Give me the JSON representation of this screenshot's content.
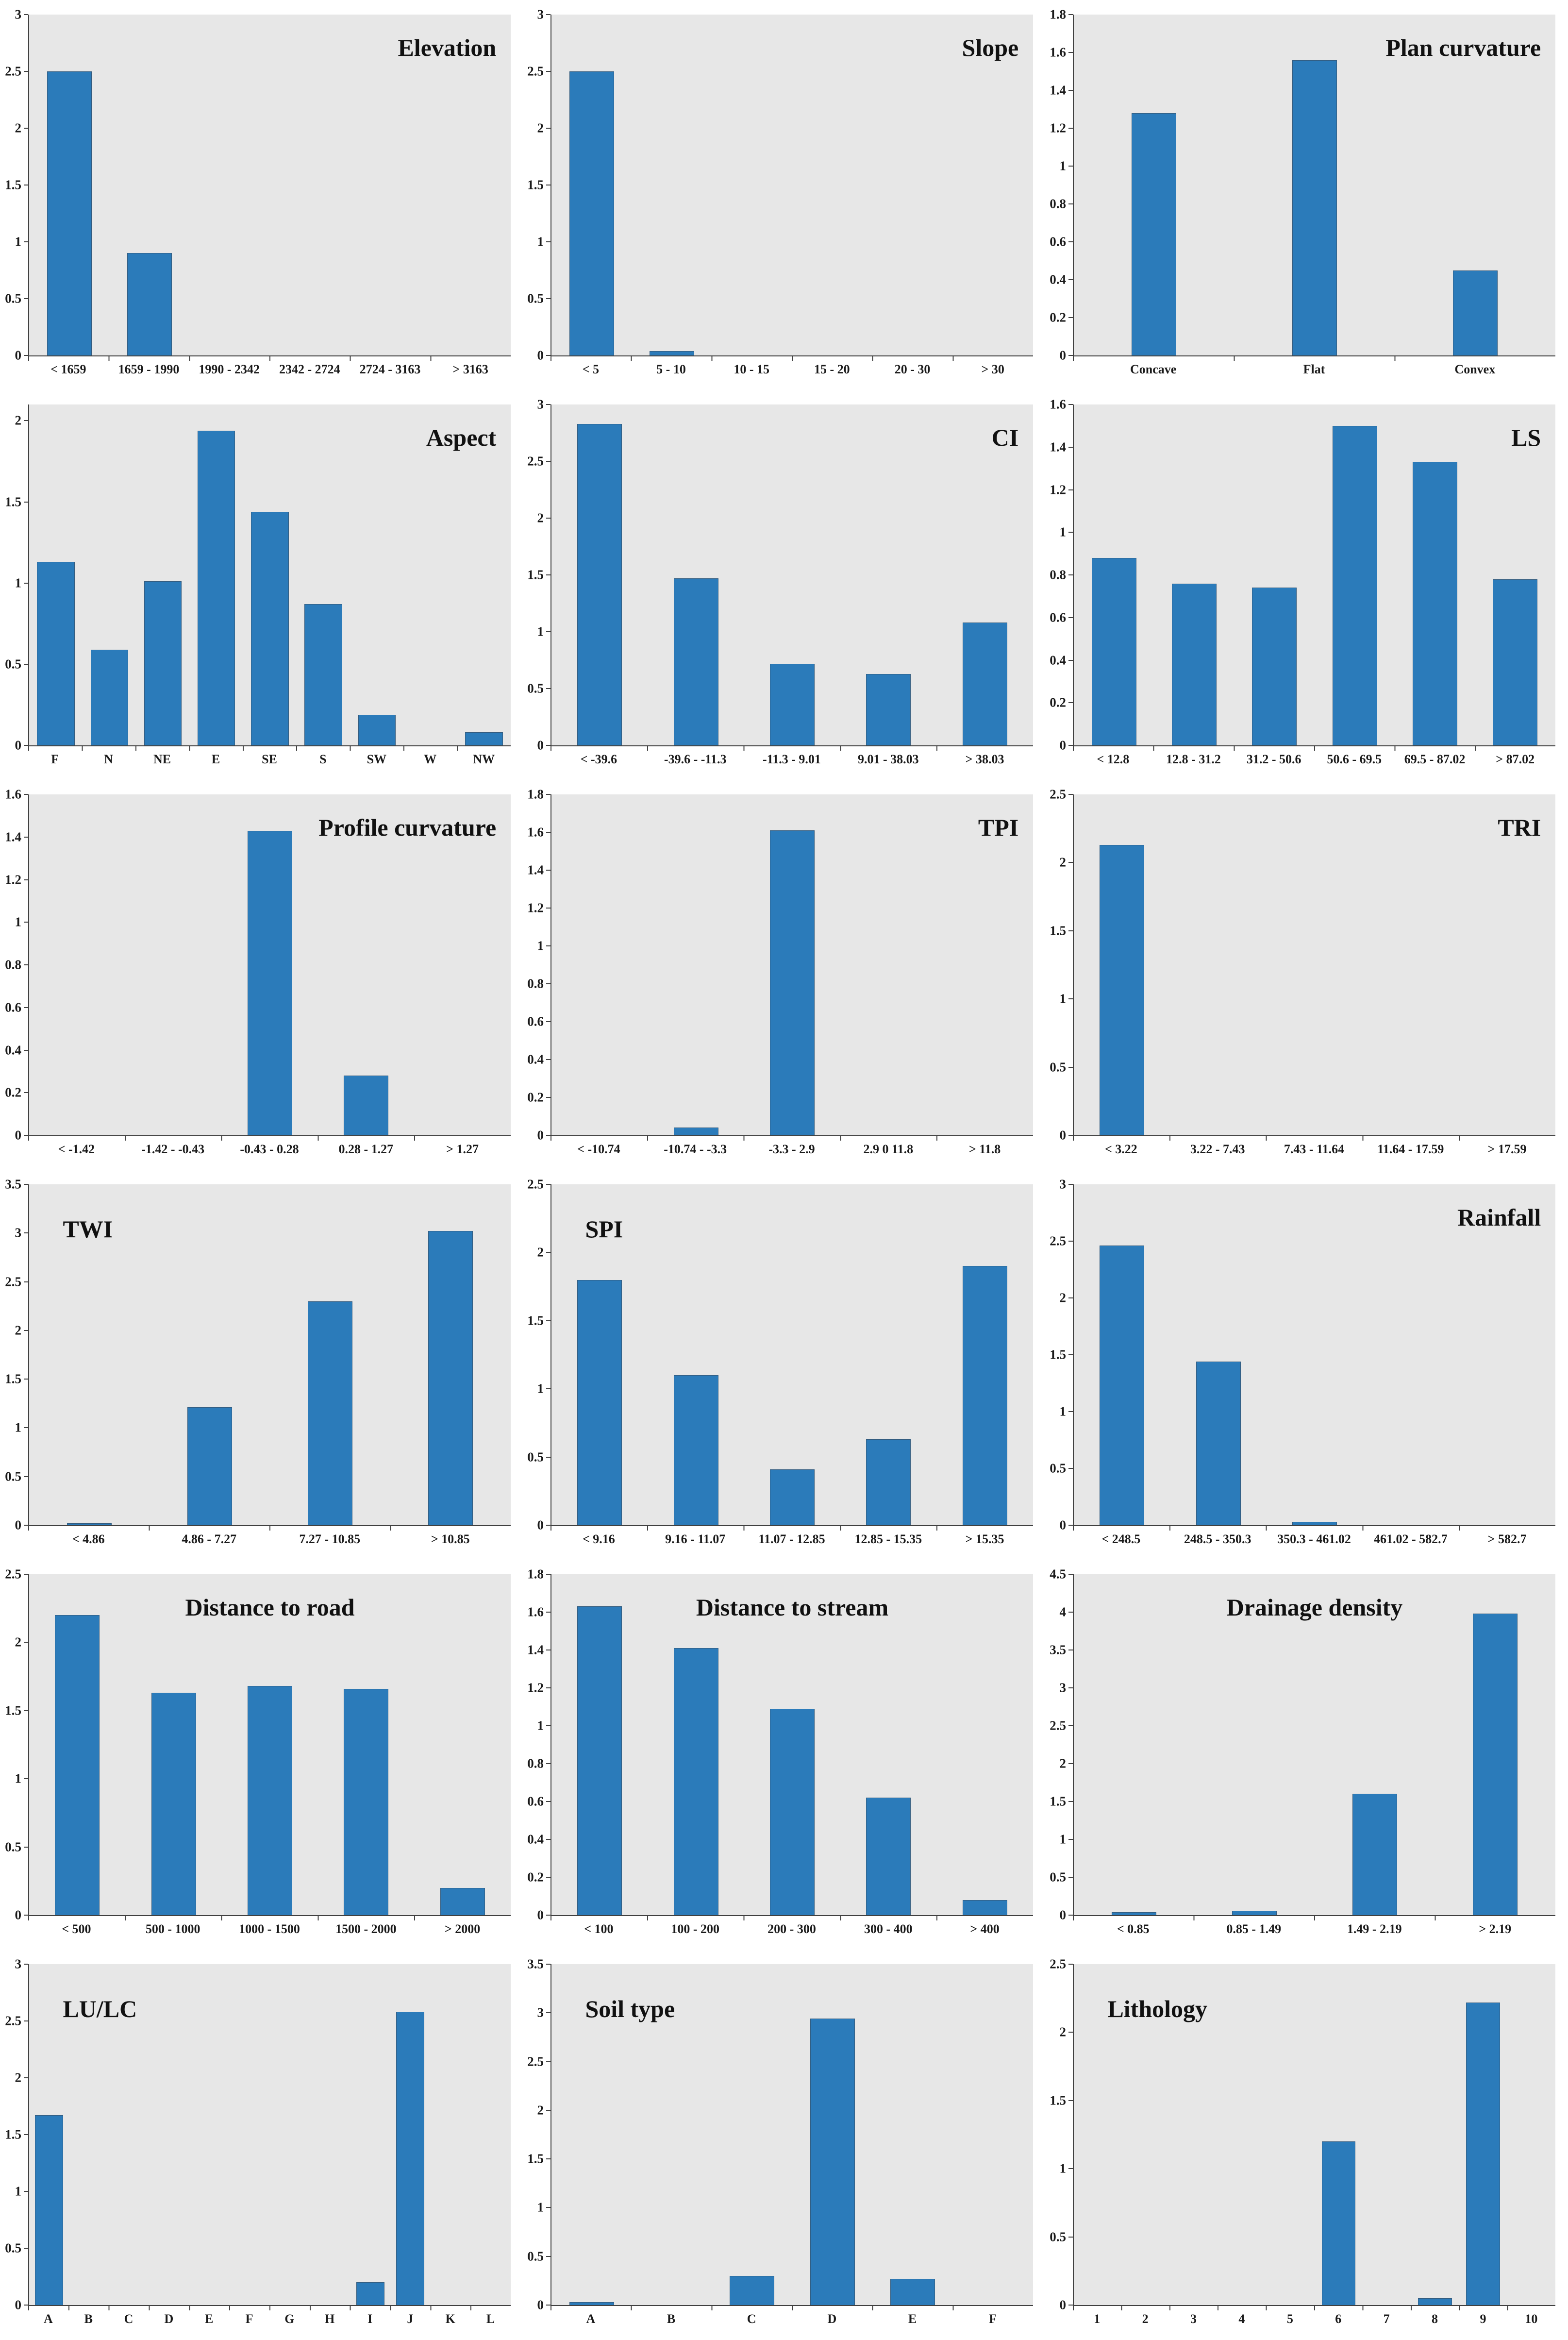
{
  "page": {
    "background": "#ffffff",
    "layout": "6x3 grid of bar charts (landslide conditioning factor frequency-ratio histograms)"
  },
  "colors": {
    "bar": "#2b7bba",
    "plot_background": "#e7e7e7",
    "axis": "#404040",
    "text": "#111111",
    "page_background": "#ffffff"
  },
  "chart_data": [
    {
      "id": "elevation",
      "type": "bar",
      "title": "Elevation",
      "title_pos": "right",
      "categories": [
        "< 1659",
        "1659 - 1990",
        "1990 - 2342",
        "2342 - 2724",
        "2724 - 3163",
        "> 3163"
      ],
      "values": [
        2.5,
        0.9,
        0,
        0,
        0,
        0
      ],
      "ylim": [
        0,
        3
      ],
      "ytick_values": [
        0,
        0.5,
        1,
        1.5,
        2,
        2.5,
        3
      ],
      "yticks": [
        "0",
        "0.5",
        "1",
        "1.5",
        "2",
        "2.5",
        "3"
      ],
      "xlabel": "",
      "ylabel": "",
      "grid": false,
      "legend": "none"
    },
    {
      "id": "slope",
      "type": "bar",
      "title": "Slope",
      "title_pos": "right",
      "categories": [
        "< 5",
        "5 - 10",
        "10 - 15",
        "15 - 20",
        "20 - 30",
        "> 30"
      ],
      "values": [
        2.5,
        0.04,
        0,
        0,
        0,
        0
      ],
      "ylim": [
        0,
        3
      ],
      "ytick_values": [
        0,
        0.5,
        1,
        1.5,
        2,
        2.5,
        3
      ],
      "yticks": [
        "0",
        "0.5",
        "1",
        "1.5",
        "2",
        "2.5",
        "3"
      ],
      "xlabel": "",
      "ylabel": "",
      "grid": false,
      "legend": "none"
    },
    {
      "id": "plan-curvature",
      "type": "bar",
      "title": "Plan curvature",
      "title_pos": "right",
      "categories": [
        "Concave",
        "Flat",
        "Convex"
      ],
      "values": [
        1.28,
        1.56,
        0.45
      ],
      "ylim": [
        0,
        1.8
      ],
      "ytick_values": [
        0,
        0.2,
        0.4,
        0.6,
        0.8,
        1,
        1.2,
        1.4,
        1.6,
        1.8
      ],
      "yticks": [
        "0",
        "0.2",
        "0.4",
        "0.6",
        "0.8",
        "1",
        "1.2",
        "1.4",
        "1.6",
        "1.8"
      ],
      "xlabel": "",
      "ylabel": "",
      "grid": false,
      "legend": "none"
    },
    {
      "id": "aspect",
      "type": "bar",
      "title": "Aspect",
      "title_pos": "right",
      "categories": [
        "F",
        "N",
        "NE",
        "E",
        "SE",
        "S",
        "SW",
        "W",
        "NW"
      ],
      "values": [
        1.13,
        0.59,
        1.01,
        1.94,
        1.44,
        0.87,
        0.19,
        0,
        0.08
      ],
      "ylim": [
        0,
        2.1
      ],
      "ytick_values": [
        0,
        0.5,
        1,
        1.5,
        2
      ],
      "yticks": [
        "0",
        "0.5",
        "1",
        "1.5",
        "2"
      ],
      "xlabel": "",
      "ylabel": "",
      "grid": false,
      "legend": "none"
    },
    {
      "id": "ci",
      "type": "bar",
      "title": "CI",
      "title_pos": "right",
      "categories": [
        "< -39.6",
        "-39.6 - -11.3",
        "-11.3 - 9.01",
        "9.01 - 38.03",
        "> 38.03"
      ],
      "values": [
        2.83,
        1.47,
        0.72,
        0.63,
        1.08
      ],
      "ylim": [
        0,
        3
      ],
      "ytick_values": [
        0,
        0.5,
        1,
        1.5,
        2,
        2.5,
        3
      ],
      "yticks": [
        "0",
        "0.5",
        "1",
        "1.5",
        "2",
        "2.5",
        "3"
      ],
      "xlabel": "",
      "ylabel": "",
      "grid": false,
      "legend": "none"
    },
    {
      "id": "ls",
      "type": "bar",
      "title": "LS",
      "title_pos": "right",
      "categories": [
        "< 12.8",
        "12.8 - 31.2",
        "31.2 - 50.6",
        "50.6 - 69.5",
        "69.5 - 87.02",
        "> 87.02"
      ],
      "values": [
        0.88,
        0.76,
        0.74,
        1.5,
        1.33,
        0.78
      ],
      "ylim": [
        0,
        1.6
      ],
      "ytick_values": [
        0,
        0.2,
        0.4,
        0.6,
        0.8,
        1,
        1.2,
        1.4,
        1.6
      ],
      "yticks": [
        "0",
        "0.2",
        "0.4",
        "0.6",
        "0.8",
        "1",
        "1.2",
        "1.4",
        "1.6"
      ],
      "xlabel": "",
      "ylabel": "",
      "grid": false,
      "legend": "none"
    },
    {
      "id": "profile-curvature",
      "type": "bar",
      "title": "Profile curvature",
      "title_pos": "right",
      "categories": [
        "< -1.42",
        "-1.42 - -0.43",
        "-0.43 - 0.28",
        "0.28 - 1.27",
        "> 1.27"
      ],
      "values": [
        0,
        0,
        1.43,
        0.28,
        0
      ],
      "ylim": [
        0,
        1.6
      ],
      "ytick_values": [
        0,
        0.2,
        0.4,
        0.6,
        0.8,
        1,
        1.2,
        1.4,
        1.6
      ],
      "yticks": [
        "0",
        "0.2",
        "0.4",
        "0.6",
        "0.8",
        "1",
        "1.2",
        "1.4",
        "1.6"
      ],
      "xlabel": "",
      "ylabel": "",
      "grid": false,
      "legend": "none"
    },
    {
      "id": "tpi",
      "type": "bar",
      "title": "TPI",
      "title_pos": "right",
      "categories": [
        "< -10.74",
        "-10.74 - -3.3",
        "-3.3 - 2.9",
        "2.9 0 11.8",
        "> 11.8"
      ],
      "values": [
        0,
        0.04,
        1.61,
        0,
        0
      ],
      "ylim": [
        0,
        1.8
      ],
      "ytick_values": [
        0,
        0.2,
        0.4,
        0.6,
        0.8,
        1,
        1.2,
        1.4,
        1.6,
        1.8
      ],
      "yticks": [
        "0",
        "0.2",
        "0.4",
        "0.6",
        "0.8",
        "1",
        "1.2",
        "1.4",
        "1.6",
        "1.8"
      ],
      "xlabel": "",
      "ylabel": "",
      "grid": false,
      "legend": "none"
    },
    {
      "id": "tri",
      "type": "bar",
      "title": "TRI",
      "title_pos": "right",
      "categories": [
        "< 3.22",
        "3.22 - 7.43",
        "7.43 - 11.64",
        "11.64 - 17.59",
        "> 17.59"
      ],
      "values": [
        2.13,
        0,
        0,
        0,
        0
      ],
      "ylim": [
        0,
        2.5
      ],
      "ytick_values": [
        0,
        0.5,
        1,
        1.5,
        2,
        2.5
      ],
      "yticks": [
        "0",
        "0.5",
        "1",
        "1.5",
        "2",
        "2.5"
      ],
      "xlabel": "",
      "ylabel": "",
      "grid": false,
      "legend": "none"
    },
    {
      "id": "twi",
      "type": "bar",
      "title": "TWI",
      "title_pos": "left",
      "categories": [
        "< 4.86",
        "4.86 - 7.27",
        "7.27 - 10.85",
        "> 10.85"
      ],
      "values": [
        0.02,
        1.21,
        2.3,
        3.02
      ],
      "ylim": [
        0,
        3.5
      ],
      "ytick_values": [
        0,
        0.5,
        1,
        1.5,
        2,
        2.5,
        3,
        3.5
      ],
      "yticks": [
        "0",
        "0.5",
        "1",
        "1.5",
        "2",
        "2.5",
        "3",
        "3.5"
      ],
      "xlabel": "",
      "ylabel": "",
      "grid": false,
      "legend": "none"
    },
    {
      "id": "spi",
      "type": "bar",
      "title": "SPI",
      "title_pos": "left",
      "categories": [
        "< 9.16",
        "9.16 - 11.07",
        "11.07 - 12.85",
        "12.85 - 15.35",
        "> 15.35"
      ],
      "values": [
        1.8,
        1.1,
        0.41,
        0.63,
        1.9
      ],
      "ylim": [
        0,
        2.5
      ],
      "ytick_values": [
        0,
        0.5,
        1,
        1.5,
        2,
        2.5
      ],
      "yticks": [
        "0",
        "0.5",
        "1",
        "1.5",
        "2",
        "2.5"
      ],
      "xlabel": "",
      "ylabel": "",
      "grid": false,
      "legend": "none"
    },
    {
      "id": "rainfall",
      "type": "bar",
      "title": "Rainfall",
      "title_pos": "right",
      "categories": [
        "< 248.5",
        "248.5 - 350.3",
        "350.3 - 461.02",
        "461.02 - 582.7",
        "> 582.7"
      ],
      "values": [
        2.46,
        1.44,
        0.03,
        0,
        0
      ],
      "ylim": [
        0,
        3
      ],
      "ytick_values": [
        0,
        0.5,
        1,
        1.5,
        2,
        2.5,
        3
      ],
      "yticks": [
        "0",
        "0.5",
        "1",
        "1.5",
        "2",
        "2.5",
        "3"
      ],
      "xlabel": "",
      "ylabel": "",
      "grid": false,
      "legend": "none"
    },
    {
      "id": "distance-to-road",
      "type": "bar",
      "title": "Distance to road",
      "title_pos": "center",
      "categories": [
        "< 500",
        "500 - 1000",
        "1000 - 1500",
        "1500 - 2000",
        "> 2000"
      ],
      "values": [
        2.2,
        1.63,
        1.68,
        1.66,
        0.2
      ],
      "ylim": [
        0,
        2.5
      ],
      "ytick_values": [
        0,
        0.5,
        1,
        1.5,
        2,
        2.5
      ],
      "yticks": [
        "0",
        "0.5",
        "1",
        "1.5",
        "2",
        "2.5"
      ],
      "xlabel": "",
      "ylabel": "",
      "grid": false,
      "legend": "none"
    },
    {
      "id": "distance-to-stream",
      "type": "bar",
      "title": "Distance to stream",
      "title_pos": "center",
      "categories": [
        "< 100",
        "100 - 200",
        "200 - 300",
        "300 - 400",
        "> 400"
      ],
      "values": [
        1.63,
        1.41,
        1.09,
        0.62,
        0.08
      ],
      "ylim": [
        0,
        1.8
      ],
      "ytick_values": [
        0,
        0.2,
        0.4,
        0.6,
        0.8,
        1,
        1.2,
        1.4,
        1.6,
        1.8
      ],
      "yticks": [
        "0",
        "0.2",
        "0.4",
        "0.6",
        "0.8",
        "1",
        "1.2",
        "1.4",
        "1.6",
        "1.8"
      ],
      "xlabel": "",
      "ylabel": "",
      "grid": false,
      "legend": "none"
    },
    {
      "id": "drainage-density",
      "type": "bar",
      "title": "Drainage density",
      "title_pos": "center",
      "categories": [
        "< 0.85",
        "0.85 - 1.49",
        "1.49 - 2.19",
        "> 2.19"
      ],
      "values": [
        0.04,
        0.06,
        1.6,
        3.98
      ],
      "ylim": [
        0,
        4.5
      ],
      "ytick_values": [
        0,
        0.5,
        1,
        1.5,
        2,
        2.5,
        3,
        3.5,
        4,
        4.5
      ],
      "yticks": [
        "0",
        "0.5",
        "1",
        "1.5",
        "2",
        "2.5",
        "3",
        "3.5",
        "4",
        "4.5"
      ],
      "xlabel": "",
      "ylabel": "",
      "grid": false,
      "legend": "none"
    },
    {
      "id": "lulc",
      "type": "bar",
      "title": "LU/LC",
      "title_pos": "left",
      "categories": [
        "A",
        "B",
        "C",
        "D",
        "E",
        "F",
        "G",
        "H",
        "I",
        "J",
        "K",
        "L"
      ],
      "values": [
        1.67,
        0,
        0,
        0,
        0,
        0,
        0,
        0,
        0.2,
        2.58,
        0,
        0
      ],
      "ylim": [
        0,
        3
      ],
      "ytick_values": [
        0,
        0.5,
        1,
        1.5,
        2,
        2.5,
        3
      ],
      "yticks": [
        "0",
        "0.5",
        "1",
        "1.5",
        "2",
        "2.5",
        "3"
      ],
      "xlabel": "",
      "ylabel": "",
      "grid": false,
      "legend": "none"
    },
    {
      "id": "soil-type",
      "type": "bar",
      "title": "Soil type",
      "title_pos": "left",
      "categories": [
        "A",
        "B",
        "C",
        "D",
        "E",
        "F"
      ],
      "values": [
        0.03,
        0,
        0.3,
        2.94,
        0.27,
        0
      ],
      "ylim": [
        0,
        3.5
      ],
      "ytick_values": [
        0,
        0.5,
        1,
        1.5,
        2,
        2.5,
        3,
        3.5
      ],
      "yticks": [
        "0",
        "0.5",
        "1",
        "1.5",
        "2",
        "2.5",
        "3",
        "3.5"
      ],
      "xlabel": "",
      "ylabel": "",
      "grid": false,
      "legend": "none"
    },
    {
      "id": "lithology",
      "type": "bar",
      "title": "Lithology",
      "title_pos": "left",
      "categories": [
        "1",
        "2",
        "3",
        "4",
        "5",
        "6",
        "7",
        "8",
        "9",
        "10"
      ],
      "values": [
        0,
        0,
        0,
        0,
        0,
        1.2,
        0,
        0.05,
        2.22,
        0
      ],
      "ylim": [
        0,
        2.5
      ],
      "ytick_values": [
        0,
        0.5,
        1,
        1.5,
        2,
        2.5
      ],
      "yticks": [
        "0",
        "0.5",
        "1",
        "1.5",
        "2",
        "2.5"
      ],
      "xlabel": "",
      "ylabel": "",
      "grid": false,
      "legend": "none"
    }
  ]
}
